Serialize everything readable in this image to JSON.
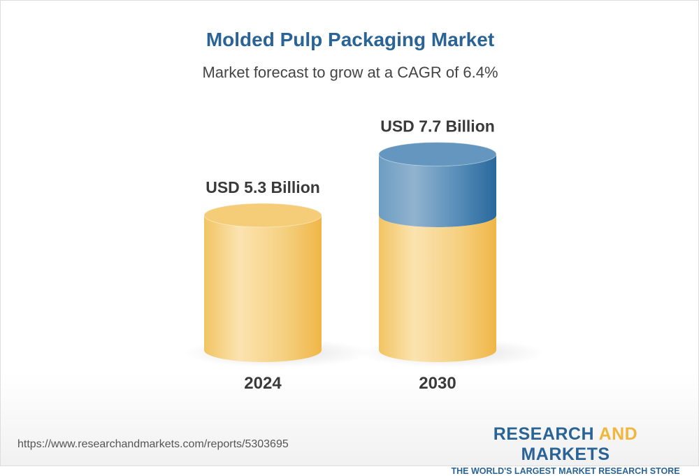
{
  "title": "Molded Pulp Packaging Market",
  "subtitle": "Market forecast to grow at a CAGR of 6.4%",
  "chart_data": {
    "type": "bar",
    "style": "3d-cylinder",
    "categories": [
      "2024",
      "2030"
    ],
    "values": [
      5.3,
      7.7
    ],
    "data_labels": [
      "USD 5.3 Billion",
      "USD 7.7 Billion"
    ],
    "unit": "USD Billion",
    "colors": {
      "base": "#f3c262",
      "growth": "#3d78aa"
    }
  },
  "footer": {
    "url": "https://www.researchandmarkets.com/reports/5303695",
    "logo_part1": "RESEARCH ",
    "logo_part2": "AND",
    "logo_part3": " MARKETS",
    "tagline": "THE WORLD'S LARGEST MARKET RESEARCH STORE"
  }
}
